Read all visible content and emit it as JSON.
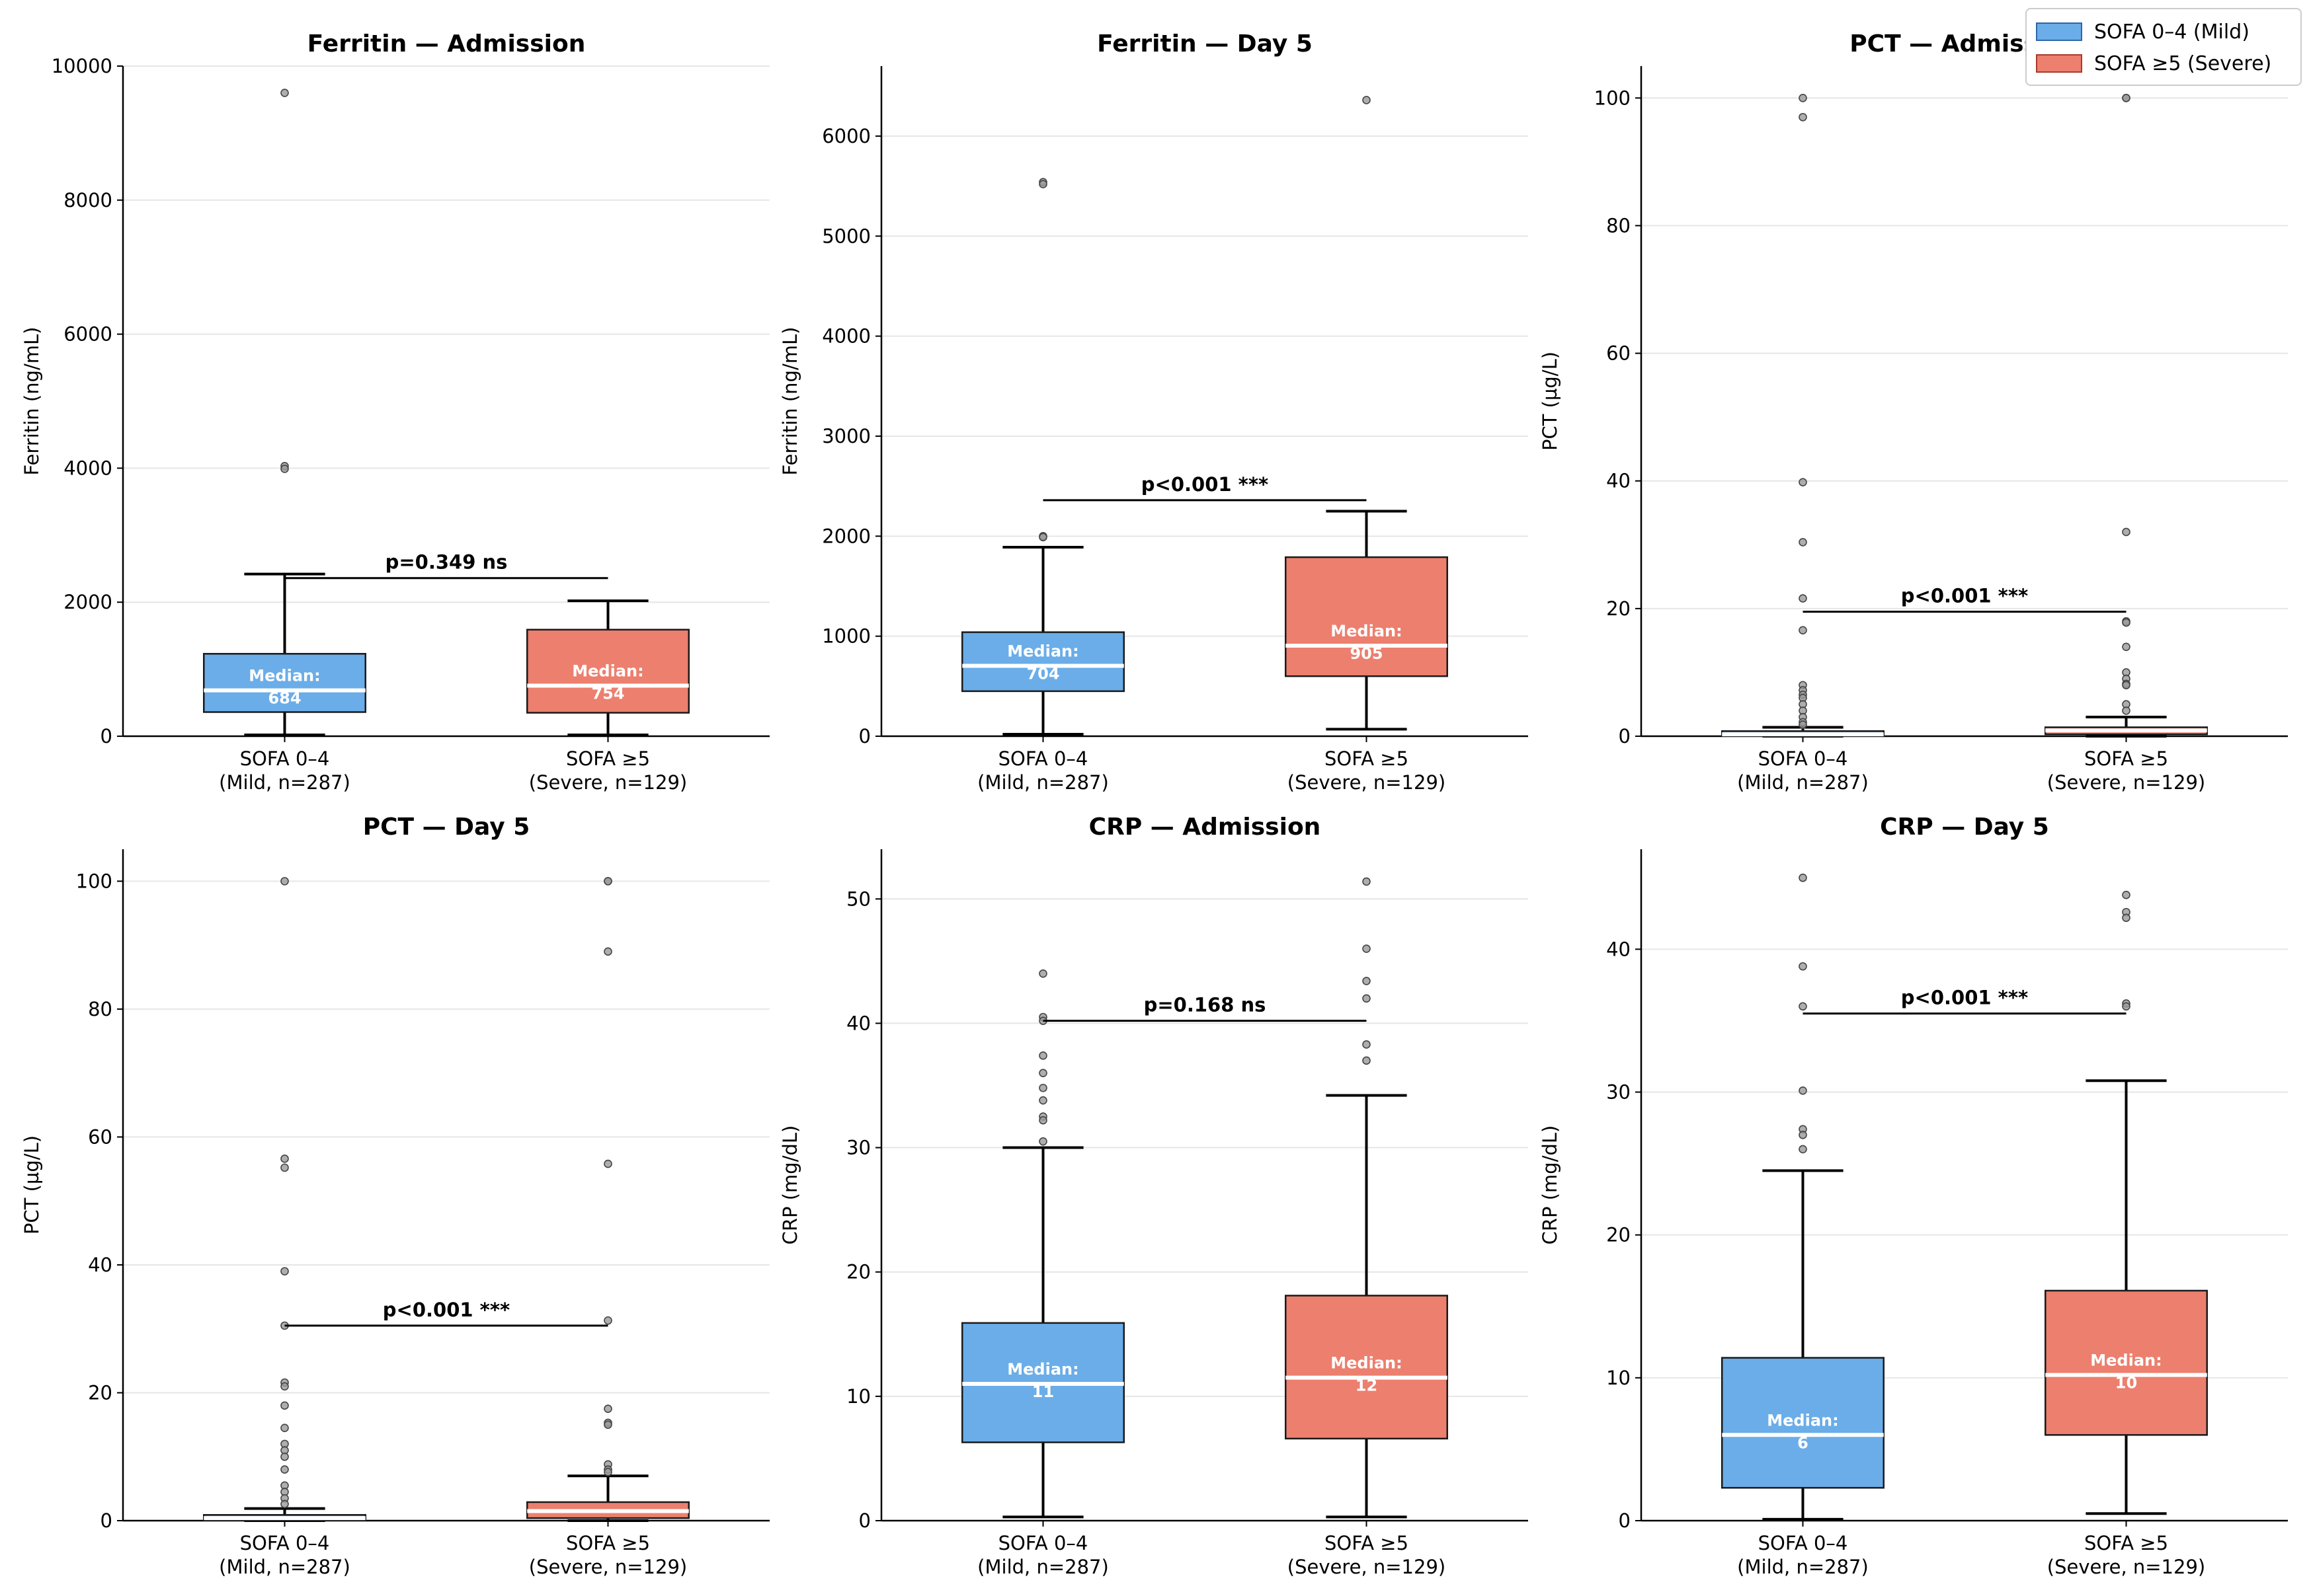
{
  "colors": {
    "mild": "#6aade8",
    "severe": "#ec7f6e",
    "mild_edge": "#2d67a8",
    "severe_edge": "#a83a2a"
  },
  "legend": {
    "mild": "SOFA 0–4 (Mild)",
    "severe": "SOFA ≥5 (Severe)"
  },
  "groups": {
    "mild": {
      "line1": "SOFA 0–4",
      "line2": "(Mild, n=287)"
    },
    "severe": {
      "line1": "SOFA ≥5",
      "line2": "(Severe, n=129)"
    }
  },
  "median_label": "Median:",
  "chart_data": [
    {
      "type": "box",
      "title": "Ferritin — Admission",
      "xlabel": "",
      "ylabel": "Ferritin (ng/mL)",
      "ylim": [
        0,
        10000
      ],
      "yticks": [
        0,
        2000,
        4000,
        6000,
        8000,
        10000
      ],
      "grid": true,
      "pvalue": "p=0.349 ns",
      "pvalue_y": 2360,
      "boxes": [
        {
          "group": "mild",
          "q1": 360,
          "median": 684,
          "q3": 1230,
          "whislo": 20,
          "whishi": 2420,
          "median_text": "684",
          "fliers": [
            9600,
            4030,
            3990
          ]
        },
        {
          "group": "severe",
          "q1": 350,
          "median": 754,
          "q3": 1590,
          "whislo": 20,
          "whishi": 2020,
          "median_text": "754",
          "fliers": []
        }
      ]
    },
    {
      "type": "box",
      "title": "Ferritin — Day 5",
      "xlabel": "",
      "ylabel": "Ferritin (ng/mL)",
      "ylim": [
        0,
        6700
      ],
      "yticks": [
        0,
        1000,
        2000,
        3000,
        4000,
        5000,
        6000
      ],
      "grid": true,
      "pvalue": "p<0.001 ***",
      "pvalue_y": 2360,
      "boxes": [
        {
          "group": "mild",
          "q1": 450,
          "median": 704,
          "q3": 1040,
          "whislo": 20,
          "whishi": 1890,
          "median_text": "704",
          "fliers": [
            5540,
            5520,
            2000,
            1990
          ]
        },
        {
          "group": "severe",
          "q1": 600,
          "median": 905,
          "q3": 1790,
          "whislo": 70,
          "whishi": 2250,
          "median_text": "905",
          "fliers": [
            6360
          ]
        }
      ]
    },
    {
      "type": "box",
      "title": "PCT — Admission",
      "xlabel": "",
      "ylabel": "PCT (µg/L)",
      "ylim": [
        0,
        105
      ],
      "yticks": [
        0,
        20,
        40,
        60,
        80,
        100
      ],
      "grid": true,
      "pvalue": "p<0.001 ***",
      "pvalue_y": 19.5,
      "boxes": [
        {
          "group": "mild",
          "q1": 0.1,
          "median": 0.3,
          "q3": 0.8,
          "whislo": 0,
          "whishi": 1.4,
          "median_text": "",
          "fliers": [
            100,
            97,
            39.8,
            30.4,
            21.6,
            16.6,
            8,
            7.2,
            6.5,
            6,
            5,
            4,
            3,
            2.2,
            1.8
          ]
        },
        {
          "group": "severe",
          "q1": 0.3,
          "median": 0.9,
          "q3": 1.4,
          "whislo": 0,
          "whishi": 3,
          "median_text": "",
          "fliers": [
            100,
            100,
            32,
            18,
            17.8,
            14,
            10,
            9,
            8.2,
            8,
            5,
            4
          ]
        }
      ]
    },
    {
      "type": "box",
      "title": "PCT — Day 5",
      "xlabel": "",
      "ylabel": "PCT (µg/L)",
      "ylim": [
        0,
        105
      ],
      "yticks": [
        0,
        20,
        40,
        60,
        80,
        100
      ],
      "grid": true,
      "pvalue": "p<0.001 ***",
      "pvalue_y": 30.5,
      "boxes": [
        {
          "group": "mild",
          "q1": 0.1,
          "median": 0.4,
          "q3": 0.9,
          "whislo": 0,
          "whishi": 1.9,
          "median_text": "",
          "fliers": [
            100,
            56.6,
            55.2,
            39,
            30.5,
            21.6,
            21,
            18,
            14.5,
            12,
            11,
            10,
            8,
            5.5,
            4.5,
            3.5,
            2.6
          ]
        },
        {
          "group": "severe",
          "q1": 0.4,
          "median": 1.5,
          "q3": 2.9,
          "whislo": 0,
          "whishi": 7,
          "median_text": "",
          "fliers": [
            100,
            100,
            89,
            55.8,
            31.3,
            17.5,
            15.3,
            15,
            8.8,
            8,
            7.6
          ]
        }
      ]
    },
    {
      "type": "box",
      "title": "CRP — Admission",
      "xlabel": "",
      "ylabel": "CRP (mg/dL)",
      "ylim": [
        0,
        54
      ],
      "yticks": [
        0,
        10,
        20,
        30,
        40,
        50
      ],
      "grid": true,
      "pvalue": "p=0.168 ns",
      "pvalue_y": 40.2,
      "boxes": [
        {
          "group": "mild",
          "q1": 6.3,
          "median": 11,
          "q3": 15.9,
          "whislo": 0.3,
          "whishi": 30,
          "median_text": "11",
          "fliers": [
            44,
            40.5,
            40.2,
            37.4,
            36,
            34.8,
            33.8,
            32.5,
            32.2,
            30.5
          ]
        },
        {
          "group": "severe",
          "q1": 6.6,
          "median": 11.5,
          "q3": 18.1,
          "whislo": 0.3,
          "whishi": 34.2,
          "median_text": "12",
          "fliers": [
            51.4,
            46,
            43.4,
            42,
            38.3,
            37
          ]
        }
      ]
    },
    {
      "type": "box",
      "title": "CRP — Day 5",
      "xlabel": "",
      "ylabel": "CRP (mg/dL)",
      "ylim": [
        0,
        47
      ],
      "yticks": [
        0,
        10,
        20,
        30,
        40
      ],
      "grid": true,
      "pvalue": "p<0.001 ***",
      "pvalue_y": 35.5,
      "boxes": [
        {
          "group": "mild",
          "q1": 2.3,
          "median": 6,
          "q3": 11.4,
          "whislo": 0.1,
          "whishi": 24.5,
          "median_text": "6",
          "fliers": [
            45,
            38.8,
            36,
            30.1,
            27.4,
            27,
            26
          ]
        },
        {
          "group": "severe",
          "q1": 6,
          "median": 10.2,
          "q3": 16.1,
          "whislo": 0.5,
          "whishi": 30.8,
          "median_text": "10",
          "fliers": [
            43.8,
            42.6,
            42.2,
            36.2,
            36
          ]
        }
      ]
    }
  ]
}
